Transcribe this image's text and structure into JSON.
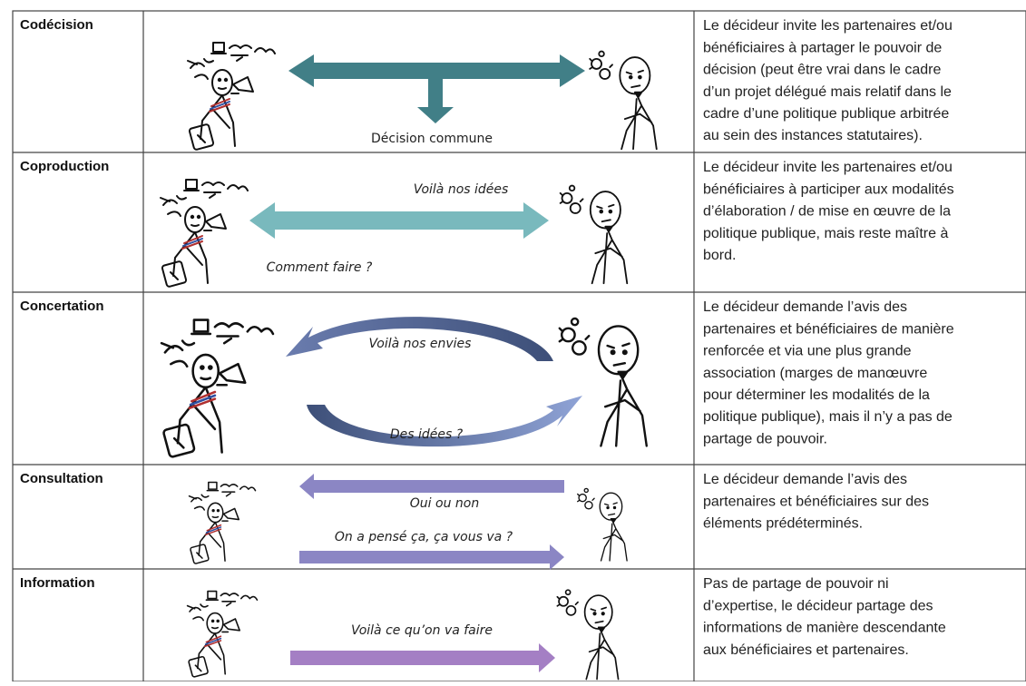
{
  "table": {
    "rows": [
      {
        "label": "Codécision",
        "captions": [
          "Décision commune"
        ],
        "description": [
          "Le décideur invite les partenaires et/ou",
          "bénéficiaires à partager le pouvoir de",
          "décision (peut être vrai dans le cadre",
          "d’un projet délégué mais relatif dans le",
          "cadre d’une politique publique arbitrée",
          "au sein des instances statutaires)."
        ]
      },
      {
        "label": "Coproduction",
        "captions": [
          "Voilà nos idées",
          "Comment faire ?"
        ],
        "description": [
          "Le décideur invite les partenaires et/ou",
          "bénéficiaires à participer aux modalités",
          "d’élaboration / de mise en œuvre de la",
          "politique publique, mais reste maître à",
          "bord."
        ]
      },
      {
        "label": "Concertation",
        "captions": [
          "Voilà nos envies",
          "Des idées ?"
        ],
        "description": [
          "Le décideur demande l’avis des",
          "partenaires et bénéficiaires de manière",
          "renforcée et via une plus grande",
          "association (marges de manœuvre",
          "pour déterminer les modalités de la",
          "politique publique), mais il n’y a pas de",
          "partage de pouvoir."
        ]
      },
      {
        "label": "Consultation",
        "captions": [
          "Oui ou non",
          "On a pensé ça, ça vous va ?"
        ],
        "description": [
          "Le décideur demande l’avis des",
          "partenaires et bénéficiaires sur des",
          "éléments prédéterminés."
        ]
      },
      {
        "label": "Information",
        "captions": [
          "Voilà ce qu’on va faire"
        ],
        "description": [
          "Pas de partage de pouvoir ni",
          "d’expertise, le décideur partage des",
          "informations de manière descendante",
          "aux bénéficiaires et partenaires."
        ]
      }
    ]
  }
}
